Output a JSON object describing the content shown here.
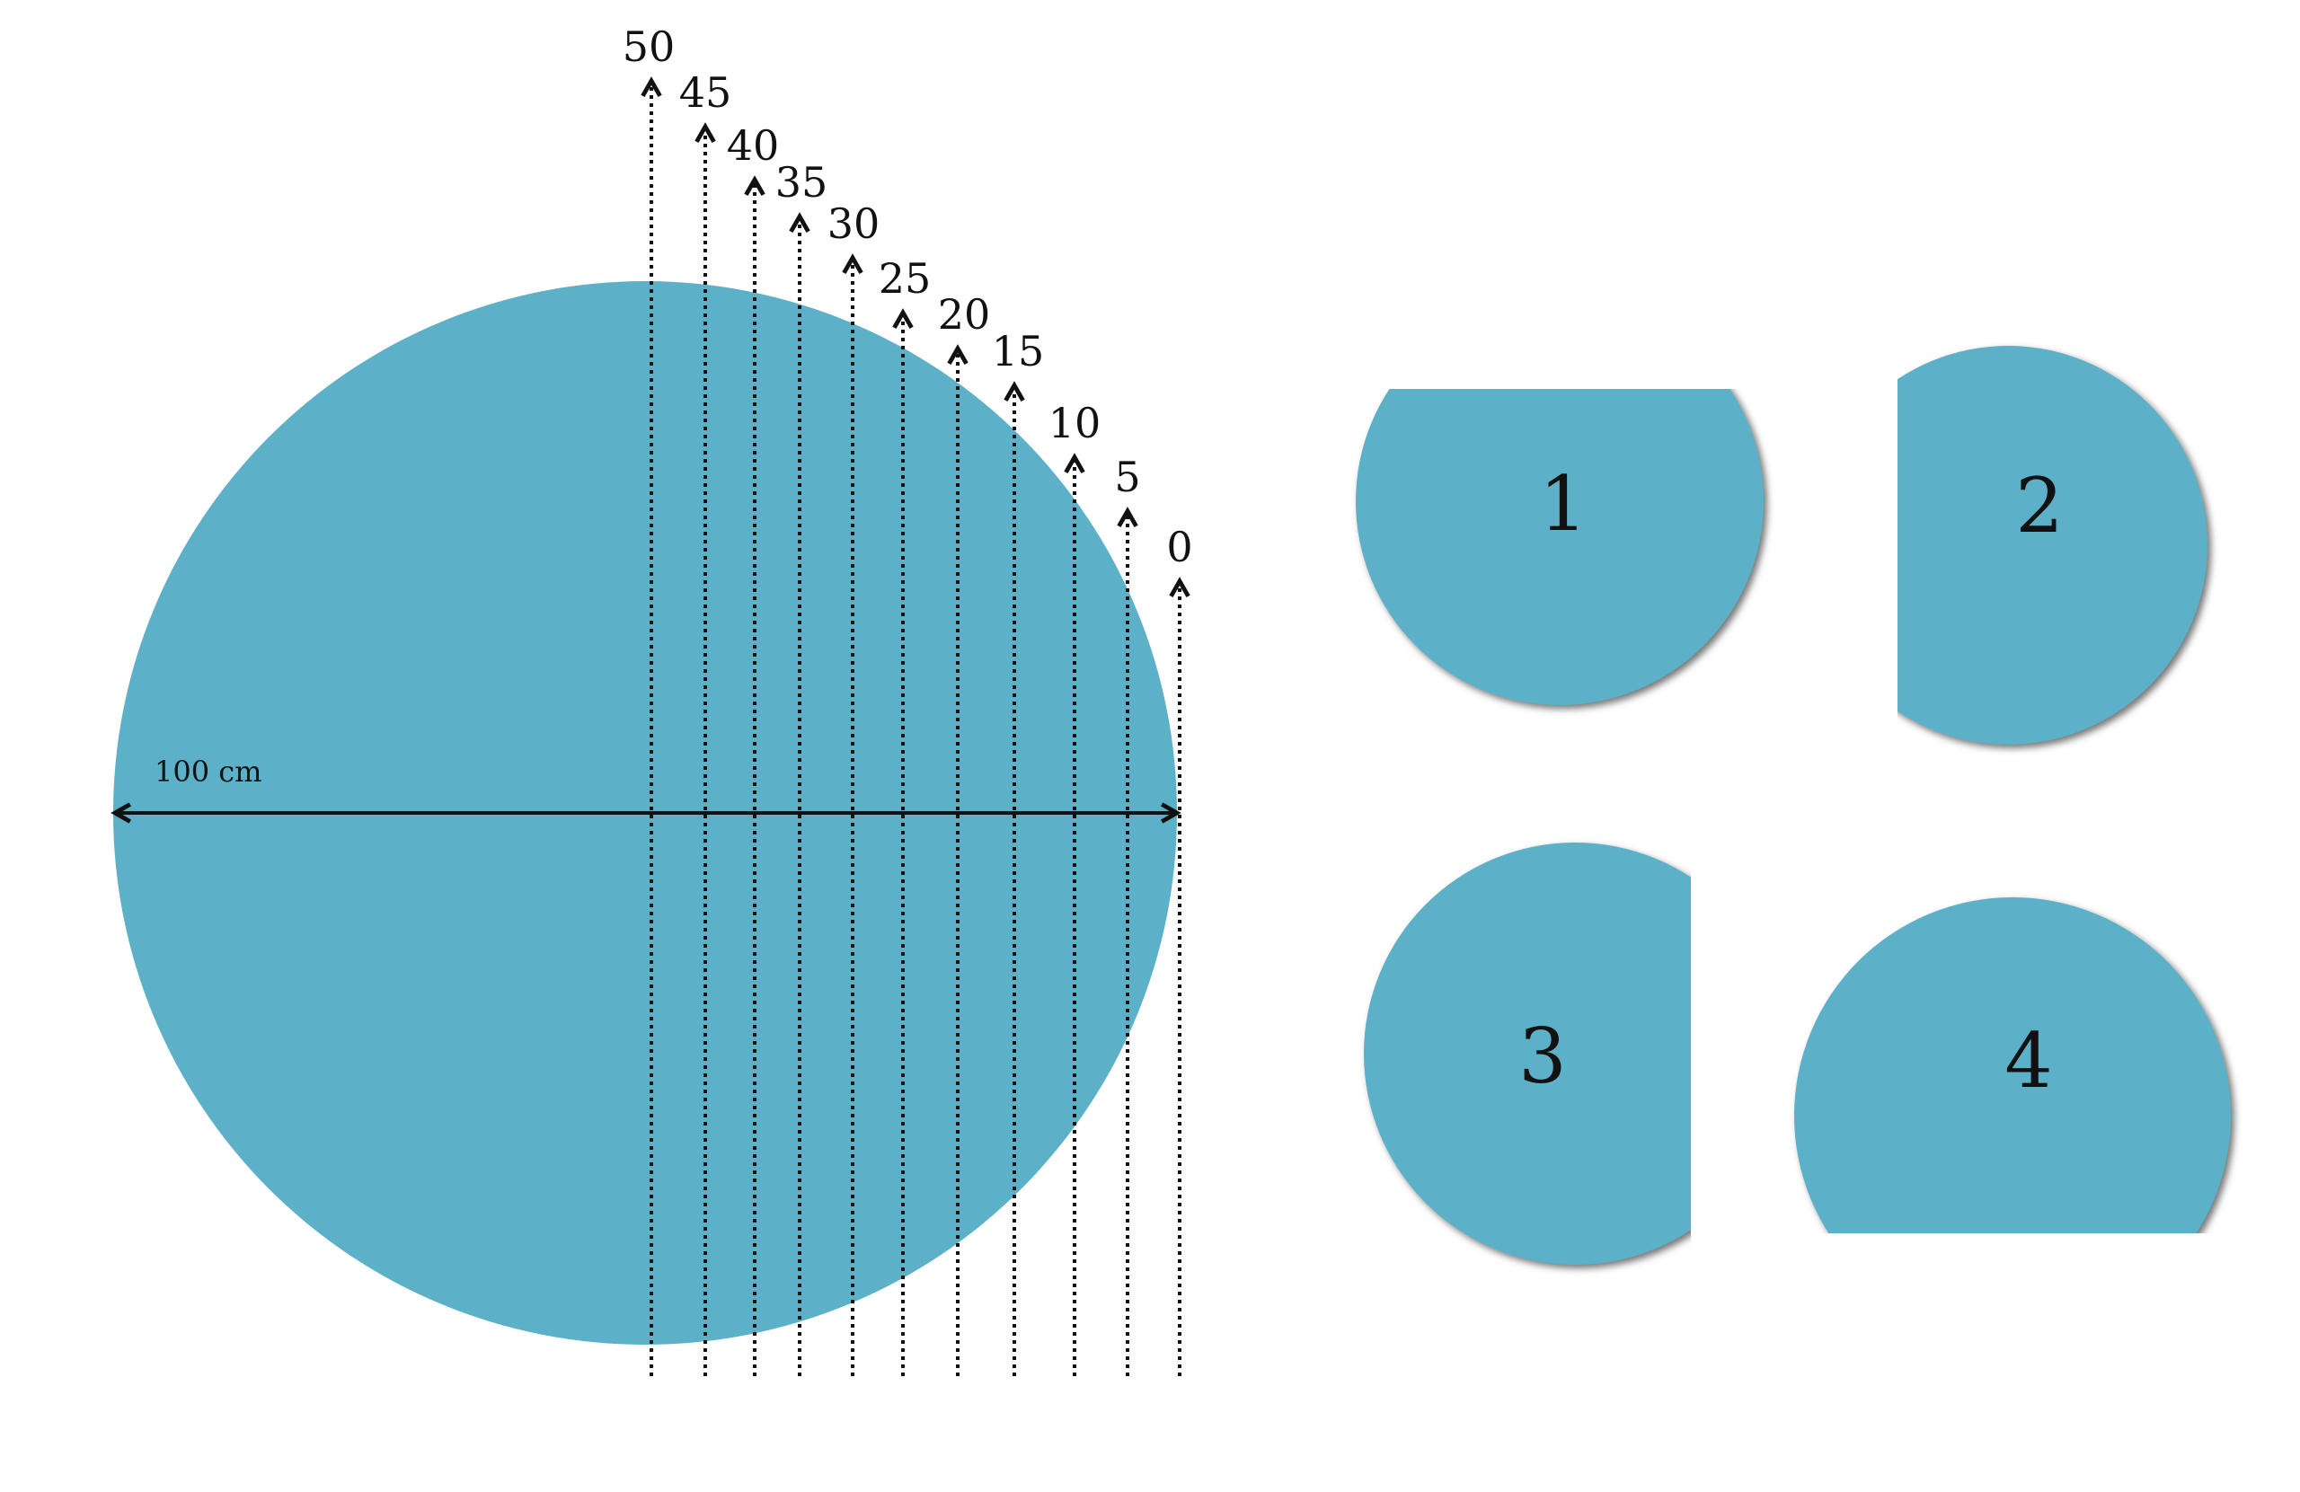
{
  "diagram": {
    "colors": {
      "fill": "#5cb0c7",
      "line": "#111111",
      "shadow": "#666666"
    },
    "diameter_label": "100 cm",
    "cut_lines": [
      {
        "label": "50"
      },
      {
        "label": "45"
      },
      {
        "label": "40"
      },
      {
        "label": "35"
      },
      {
        "label": "30"
      },
      {
        "label": "25"
      },
      {
        "label": "20"
      },
      {
        "label": "15"
      },
      {
        "label": "10"
      },
      {
        "label": "5"
      },
      {
        "label": "0"
      }
    ],
    "pieces": [
      {
        "label": "1",
        "cut_side": "top"
      },
      {
        "label": "2",
        "cut_side": "left"
      },
      {
        "label": "3",
        "cut_side": "right"
      },
      {
        "label": "4",
        "cut_side": "bottom"
      }
    ]
  }
}
